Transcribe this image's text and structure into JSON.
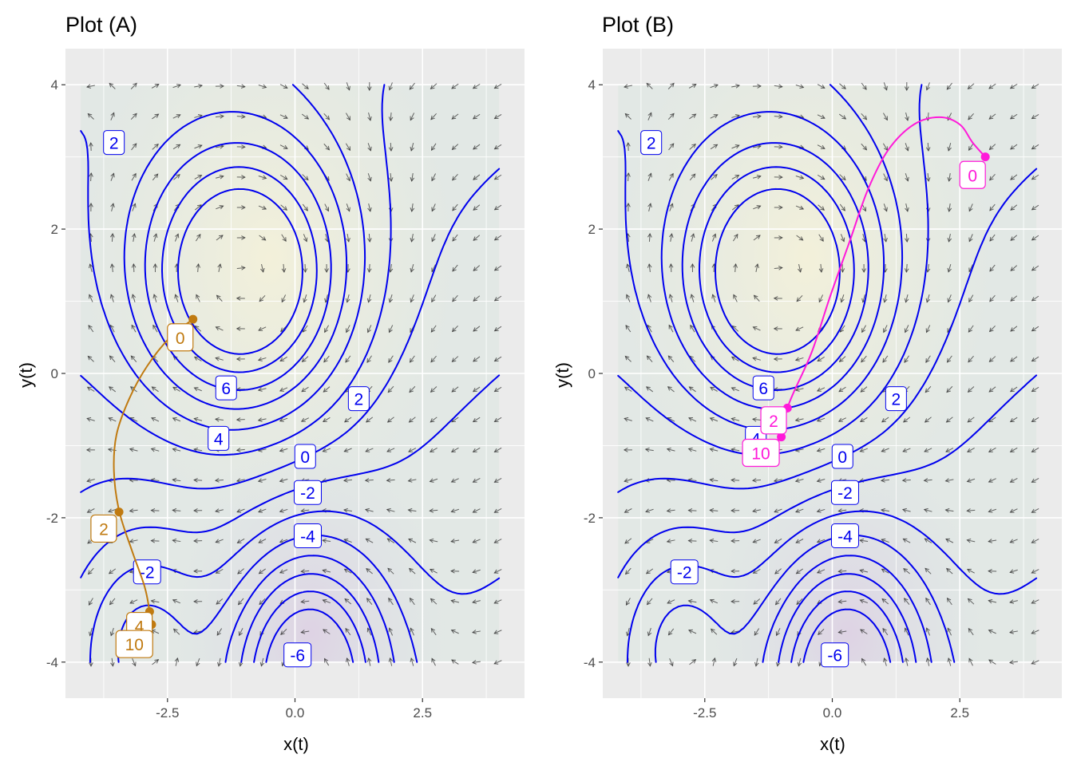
{
  "figure": {
    "colors": {
      "panel_bg": "#ebebeb",
      "grid": "#ffffff",
      "contour": "#0000ee",
      "arrow": "#333333",
      "tick_text": "#4d4d4d"
    }
  },
  "chart_data": [
    {
      "type": "contour",
      "title": "Plot (A)",
      "xlabel": "x(t)",
      "ylabel": "y(t)",
      "xlim": [
        -4.5,
        4.5
      ],
      "ylim": [
        -4.5,
        4.5
      ],
      "x_ticks": [
        -2.5,
        0.0,
        2.5
      ],
      "x_tick_labels": [
        "-2.5",
        "0.0",
        "2.5"
      ],
      "y_ticks": [
        -4,
        -2,
        0,
        2,
        4
      ],
      "y_tick_labels": [
        "-4",
        "-2",
        "0",
        "2",
        "4"
      ],
      "grid": true,
      "contour_levels": [
        -6,
        -5,
        -4,
        -3,
        -2,
        -1,
        0,
        1,
        2,
        3,
        4,
        5,
        6,
        7
      ],
      "contour_labels": [
        {
          "text": "2",
          "x": -3.55,
          "y": 3.2
        },
        {
          "text": "6",
          "x": -1.35,
          "y": -0.2
        },
        {
          "text": "4",
          "x": -1.5,
          "y": -0.9
        },
        {
          "text": "2",
          "x": 1.25,
          "y": -0.35
        },
        {
          "text": "0",
          "x": 0.2,
          "y": -1.15
        },
        {
          "text": "-2",
          "x": 0.25,
          "y": -1.65
        },
        {
          "text": "-4",
          "x": 0.25,
          "y": -2.25
        },
        {
          "text": "-2",
          "x": -2.9,
          "y": -2.75
        },
        {
          "text": "-6",
          "x": 0.05,
          "y": -3.9
        }
      ],
      "trajectory": {
        "color": "#c07a10",
        "points": [
          [
            -2.0,
            0.75
          ],
          [
            -2.45,
            0.5
          ],
          [
            -2.9,
            0.1
          ],
          [
            -3.25,
            -0.35
          ],
          [
            -3.5,
            -0.85
          ],
          [
            -3.55,
            -1.35
          ],
          [
            -3.45,
            -1.9
          ],
          [
            -3.2,
            -2.45
          ],
          [
            -2.95,
            -2.95
          ],
          [
            -2.85,
            -3.3
          ],
          [
            -2.82,
            -3.48
          ],
          [
            -2.81,
            -3.5
          ]
        ],
        "labels": [
          {
            "text": "0",
            "x": -2.25,
            "y": 0.5
          },
          {
            "text": "2",
            "x": -3.75,
            "y": -2.15
          },
          {
            "text": "4",
            "x": -3.05,
            "y": -3.5
          },
          {
            "text": "10",
            "x": -3.15,
            "y": -3.75
          }
        ],
        "markers": [
          [
            -2.0,
            0.75
          ],
          [
            -3.45,
            -1.92
          ],
          [
            -2.85,
            -3.3
          ],
          [
            -2.81,
            -3.48
          ]
        ]
      }
    },
    {
      "type": "contour",
      "title": "Plot (B)",
      "xlabel": "x(t)",
      "ylabel": "y(t)",
      "xlim": [
        -4.5,
        4.5
      ],
      "ylim": [
        -4.5,
        4.5
      ],
      "x_ticks": [
        -2.5,
        0.0,
        2.5
      ],
      "x_tick_labels": [
        "-2.5",
        "0.0",
        "2.5"
      ],
      "y_ticks": [
        -4,
        -2,
        0,
        2,
        4
      ],
      "y_tick_labels": [
        "-4",
        "-2",
        "0",
        "2",
        "4"
      ],
      "grid": true,
      "contour_levels": [
        -6,
        -5,
        -4,
        -3,
        -2,
        -1,
        0,
        1,
        2,
        3,
        4,
        5,
        6,
        7
      ],
      "contour_labels": [
        {
          "text": "2",
          "x": -3.55,
          "y": 3.2
        },
        {
          "text": "6",
          "x": -1.35,
          "y": -0.2
        },
        {
          "text": "4",
          "x": -1.5,
          "y": -0.9
        },
        {
          "text": "2",
          "x": 1.25,
          "y": -0.35
        },
        {
          "text": "0",
          "x": 0.2,
          "y": -1.15
        },
        {
          "text": "-2",
          "x": 0.25,
          "y": -1.65
        },
        {
          "text": "-4",
          "x": 0.25,
          "y": -2.25
        },
        {
          "text": "-2",
          "x": -2.9,
          "y": -2.75
        },
        {
          "text": "-6",
          "x": 0.05,
          "y": -3.9
        }
      ],
      "trajectory": {
        "color": "#ff19d9",
        "points": [
          [
            3.0,
            3.0
          ],
          [
            2.75,
            3.2
          ],
          [
            2.5,
            3.45
          ],
          [
            2.1,
            3.55
          ],
          [
            1.6,
            3.45
          ],
          [
            1.1,
            3.1
          ],
          [
            0.7,
            2.55
          ],
          [
            0.35,
            1.85
          ],
          [
            -0.05,
            1.05
          ],
          [
            -0.4,
            0.3
          ],
          [
            -0.75,
            -0.25
          ],
          [
            -0.88,
            -0.48
          ],
          [
            -0.95,
            -0.7
          ],
          [
            -1.0,
            -0.88
          ]
        ],
        "labels": [
          {
            "text": "0",
            "x": 2.75,
            "y": 2.75
          },
          {
            "text": "2",
            "x": -1.15,
            "y": -0.65
          },
          {
            "text": "10",
            "x": -1.4,
            "y": -1.1
          }
        ],
        "markers": [
          [
            3.0,
            3.0
          ],
          [
            -0.88,
            -0.48
          ],
          [
            -1.0,
            -0.88
          ]
        ]
      }
    }
  ]
}
